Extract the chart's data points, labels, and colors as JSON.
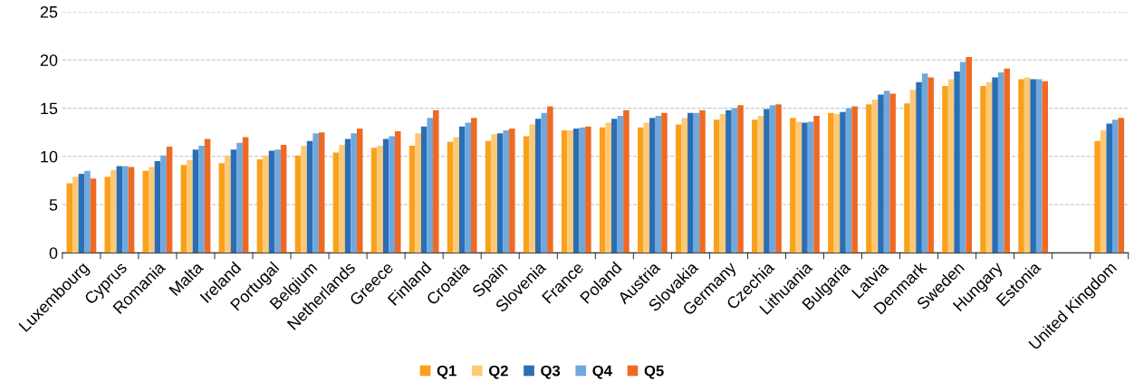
{
  "chart_data": {
    "type": "bar",
    "categories": [
      "Luxembourg",
      "Cyprus",
      "Romania",
      "Malta",
      "Ireland",
      "Portugal",
      "Belgium",
      "Netherlands",
      "Greece",
      "Finland",
      "Croatia",
      "Spain",
      "Slovenia",
      "France",
      "Poland",
      "Austria",
      "Slovakia",
      "Germany",
      "Czechia",
      "Lithuania",
      "Bulgaria",
      "Latvia",
      "Denmark",
      "Sweden",
      "Hungary",
      "Estonia",
      null,
      "United Kingdom"
    ],
    "series": [
      {
        "name": "Q1",
        "color": "#f9a11b",
        "values": [
          7.2,
          7.9,
          8.5,
          9.1,
          9.3,
          9.7,
          10.1,
          10.4,
          10.9,
          11.1,
          11.5,
          11.6,
          12.1,
          12.7,
          13.0,
          13.0,
          13.3,
          13.8,
          13.8,
          14.0,
          14.5,
          15.4,
          15.5,
          17.3,
          17.3,
          18.0,
          null,
          11.6
        ]
      },
      {
        "name": "Q2",
        "color": "#fdc976",
        "values": [
          7.9,
          8.6,
          8.9,
          9.6,
          10.1,
          10.1,
          11.1,
          11.2,
          11.1,
          12.4,
          12.0,
          12.3,
          13.3,
          12.7,
          13.5,
          13.5,
          14.0,
          14.4,
          14.2,
          13.6,
          14.4,
          15.9,
          16.9,
          18.0,
          17.7,
          18.2,
          null,
          12.7
        ]
      },
      {
        "name": "Q3",
        "color": "#2a6eb5",
        "values": [
          8.2,
          9.0,
          9.5,
          10.7,
          10.7,
          10.6,
          11.6,
          11.8,
          11.8,
          13.1,
          13.1,
          12.4,
          13.9,
          12.9,
          13.9,
          14.0,
          14.5,
          14.8,
          14.9,
          13.5,
          14.6,
          16.4,
          17.7,
          18.8,
          18.2,
          18.0,
          null,
          13.4
        ]
      },
      {
        "name": "Q4",
        "color": "#6fa8dc",
        "values": [
          8.5,
          9.0,
          10.1,
          11.1,
          11.4,
          10.7,
          12.4,
          12.4,
          12.1,
          14.0,
          13.5,
          12.7,
          14.5,
          13.0,
          14.2,
          14.2,
          14.5,
          15.0,
          15.3,
          13.6,
          15.0,
          16.8,
          18.6,
          19.8,
          18.7,
          18.0,
          null,
          13.8
        ]
      },
      {
        "name": "Q5",
        "color": "#ee6a24",
        "values": [
          7.7,
          8.9,
          11.0,
          11.8,
          12.0,
          11.2,
          12.5,
          12.9,
          12.6,
          14.8,
          14.0,
          12.9,
          15.2,
          13.1,
          14.8,
          14.5,
          14.8,
          15.3,
          15.4,
          14.2,
          15.2,
          16.5,
          18.2,
          20.3,
          19.1,
          17.8,
          null,
          14.0
        ]
      }
    ],
    "ylim": [
      0,
      25
    ],
    "yticks": [
      0,
      5,
      10,
      15,
      20,
      25
    ],
    "grid": "y",
    "legend": "bottom"
  }
}
